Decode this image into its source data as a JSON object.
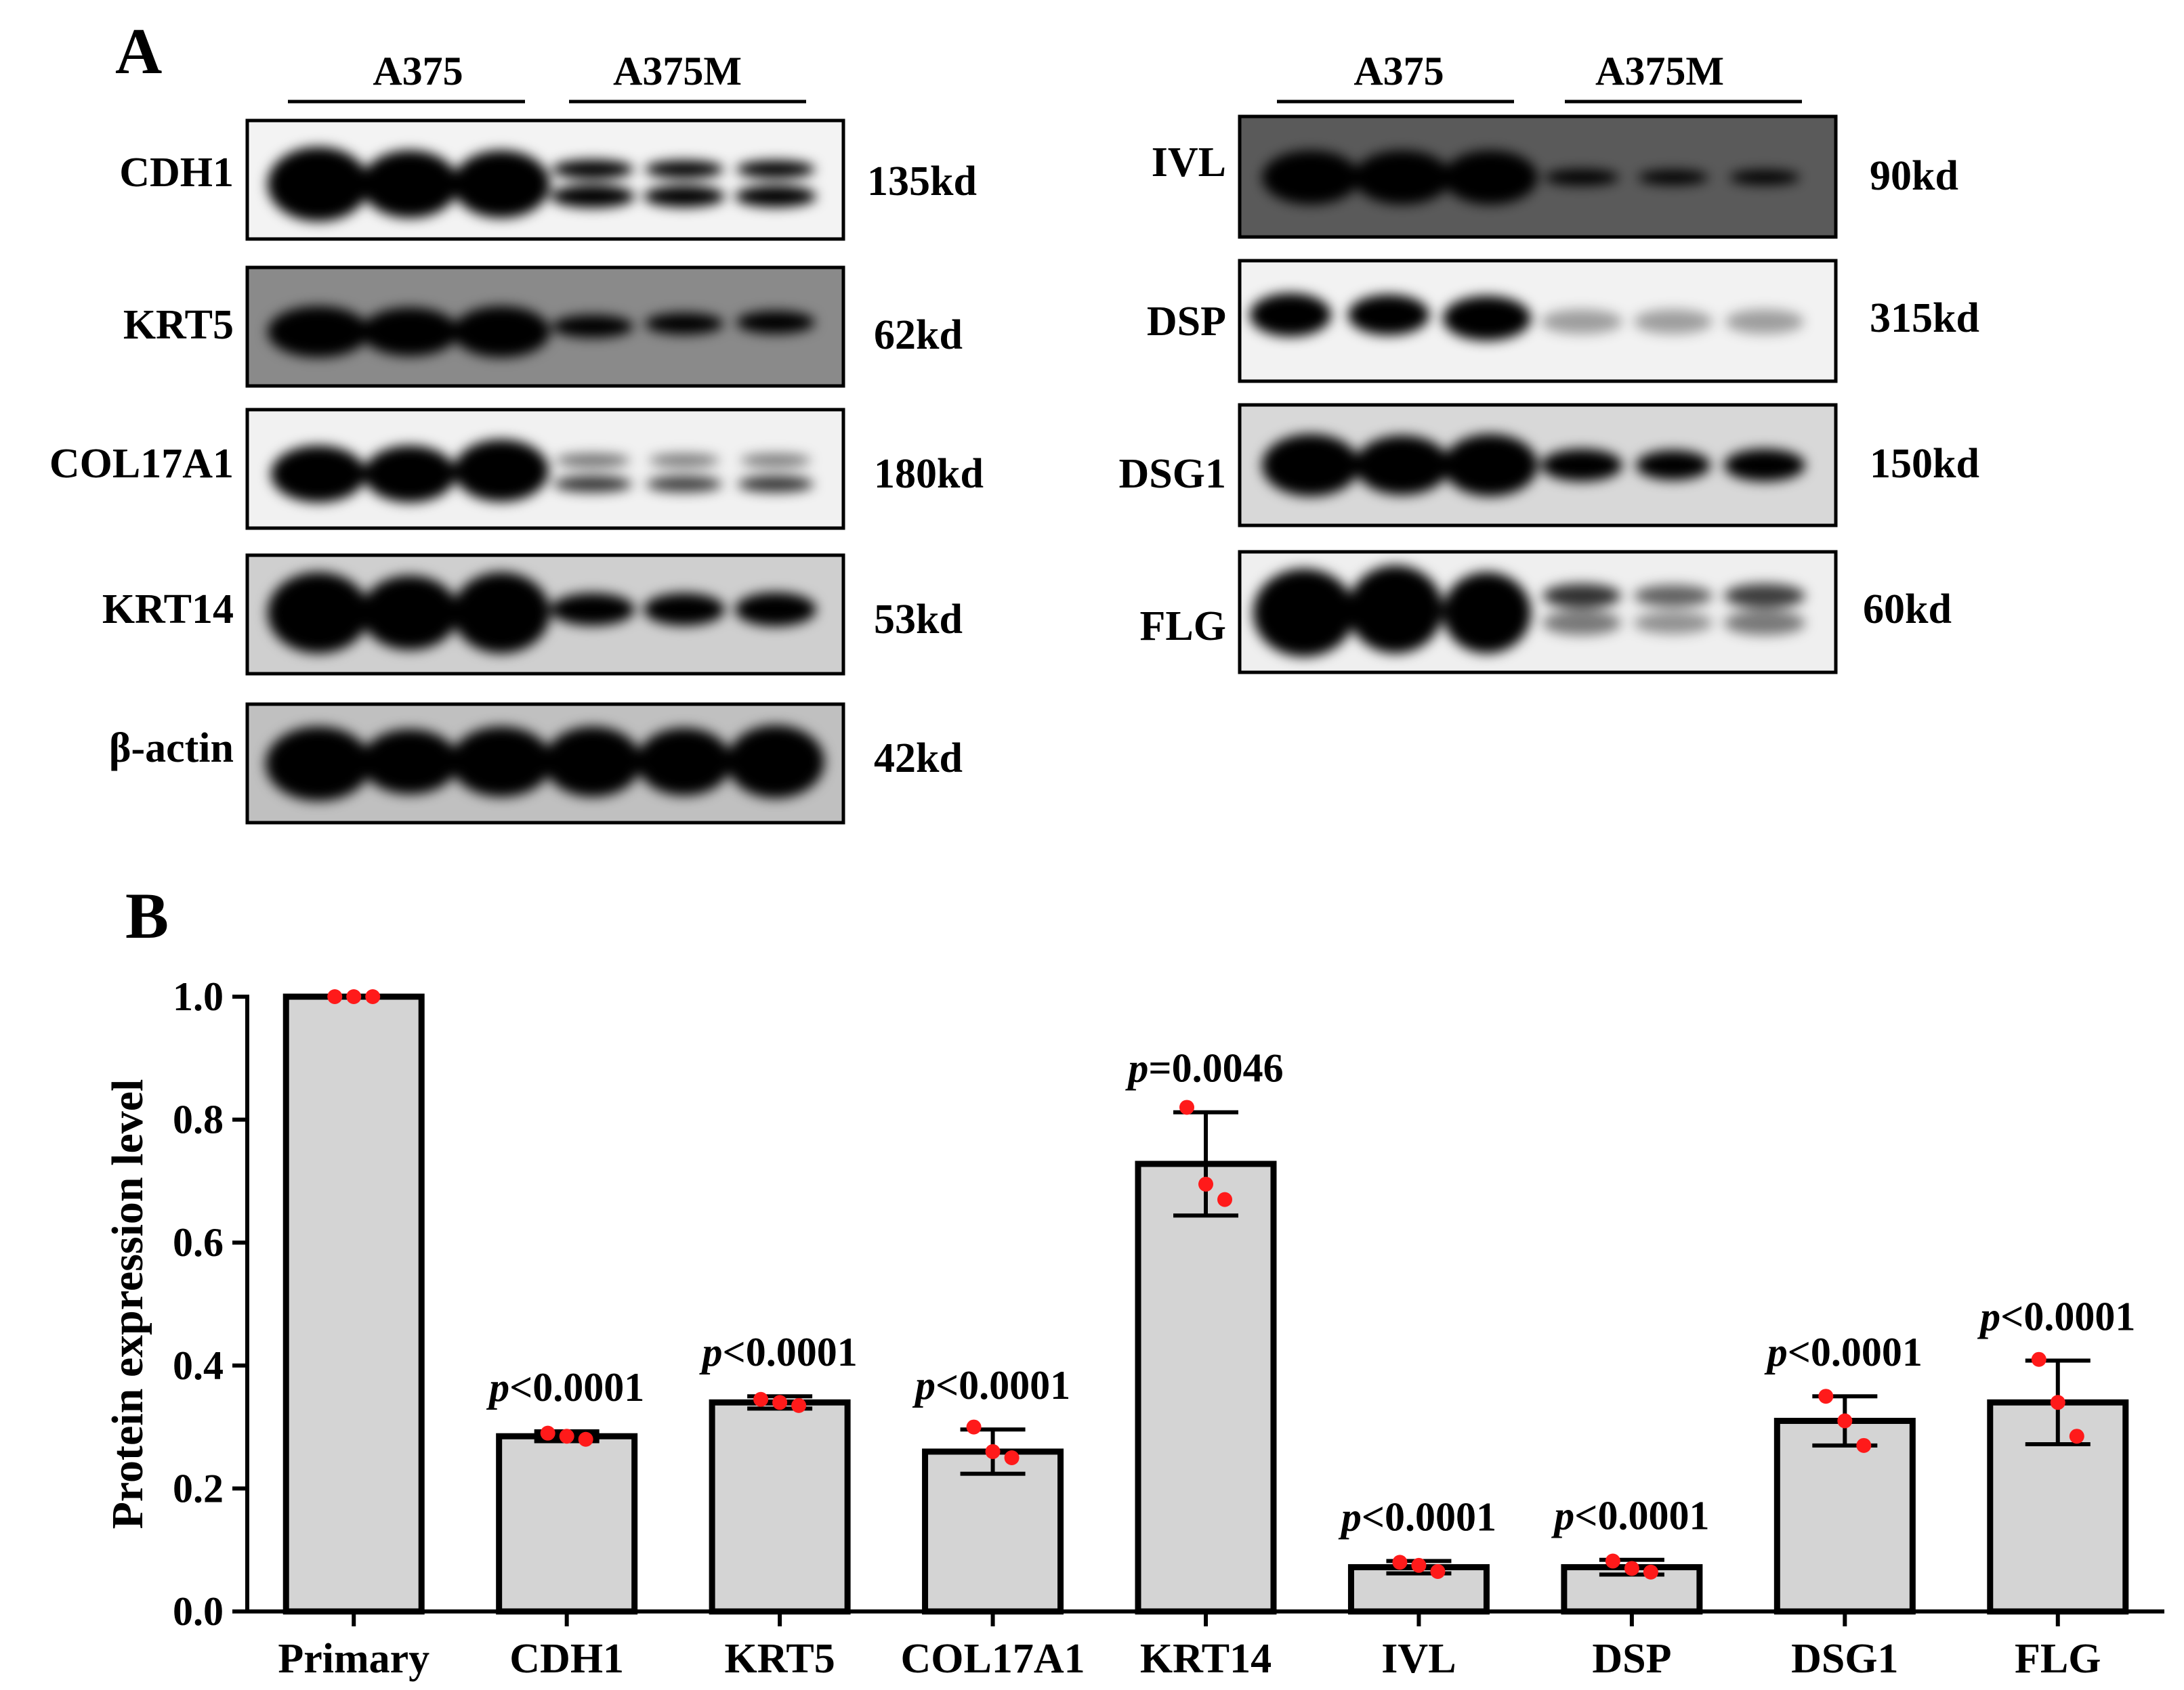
{
  "panel_a": {
    "label": "A",
    "left_blot": {
      "group1": "A375",
      "group2": "A375M",
      "rows": [
        {
          "protein": "CDH1",
          "size": "135kd"
        },
        {
          "protein": "KRT5",
          "size": "62kd"
        },
        {
          "protein": "COL17A1",
          "size": "180kd"
        },
        {
          "protein": "KRT14",
          "size": "53kd"
        },
        {
          "protein": "β-actin",
          "size": "42kd"
        }
      ]
    },
    "right_blot": {
      "group1": "A375",
      "group2": "A375M",
      "rows": [
        {
          "protein": "IVL",
          "size": "90kd"
        },
        {
          "protein": "DSP",
          "size": "315kd"
        },
        {
          "protein": "DSG1",
          "size": "150kd"
        },
        {
          "protein": "FLG",
          "size": "60kd"
        }
      ]
    }
  },
  "panel_b": {
    "label": "B"
  },
  "chart_data": {
    "type": "bar",
    "title": "",
    "xlabel": "",
    "ylabel": "Protein expression level",
    "ylim": [
      0,
      1.0
    ],
    "yticks": [
      "0.0",
      "0.2",
      "0.4",
      "0.6",
      "0.8",
      "1.0"
    ],
    "categories": [
      "Primary",
      "CDH1",
      "KRT5",
      "COL17A1",
      "KRT14",
      "IVL",
      "DSP",
      "DSG1",
      "FLG"
    ],
    "values": [
      1.0,
      0.285,
      0.34,
      0.26,
      0.728,
      0.072,
      0.072,
      0.31,
      0.34
    ],
    "error": [
      0.0,
      0.008,
      0.01,
      0.036,
      0.084,
      0.01,
      0.012,
      0.04,
      0.068
    ],
    "points": [
      [
        1.0,
        1.0,
        1.0
      ],
      [
        0.29,
        0.285,
        0.28
      ],
      [
        0.345,
        0.34,
        0.335
      ],
      [
        0.3,
        0.26,
        0.25
      ],
      [
        0.82,
        0.695,
        0.67
      ],
      [
        0.08,
        0.075,
        0.065
      ],
      [
        0.082,
        0.07,
        0.064
      ],
      [
        0.35,
        0.31,
        0.27
      ],
      [
        0.41,
        0.34,
        0.285
      ]
    ],
    "pvalues": [
      "",
      "p<0.0001",
      "p<0.0001",
      "p<0.0001",
      "p=0.0046",
      "p<0.0001",
      "p<0.0001",
      "p<0.0001",
      "p<0.0001"
    ],
    "bar_color": "#d4d4d4",
    "point_color": "#ff1a1a"
  }
}
